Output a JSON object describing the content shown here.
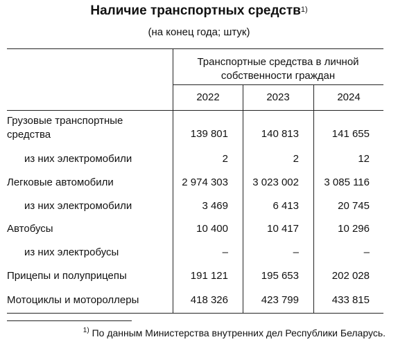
{
  "title": "Наличие транспортных средств",
  "title_note": "1)",
  "subtitle": "(на конец года; штук)",
  "header_group": "Транспортные средства в личной собственности граждан",
  "years": [
    "2022",
    "2023",
    "2024"
  ],
  "rows": [
    {
      "label": "Грузовые транспортные средства",
      "values": [
        "139 801",
        "140 813",
        "141 655"
      ]
    },
    {
      "label": "из них электромобили",
      "values": [
        "2",
        "2",
        "12"
      ]
    },
    {
      "label": "Легковые автомобили",
      "values": [
        "2 974 303",
        "3 023 002",
        "3 085 116"
      ]
    },
    {
      "label": "из них электромобили",
      "values": [
        "3 469",
        "6 413",
        "20 745"
      ]
    },
    {
      "label": "Автобусы",
      "values": [
        "10 400",
        "10 417",
        "10 296"
      ]
    },
    {
      "label": "из них электробусы",
      "values": [
        "–",
        "–",
        "–"
      ]
    },
    {
      "label": "Прицепы и полуприцепы",
      "values": [
        "191 121",
        "195 653",
        "202 028"
      ]
    },
    {
      "label": "Мотоциклы и мотороллеры",
      "values": [
        "418 326",
        "423 799",
        "433 815"
      ]
    }
  ],
  "footnote_mark": "1)",
  "footnote": "По данным Министерства внутренних дел Республики Беларусь."
}
